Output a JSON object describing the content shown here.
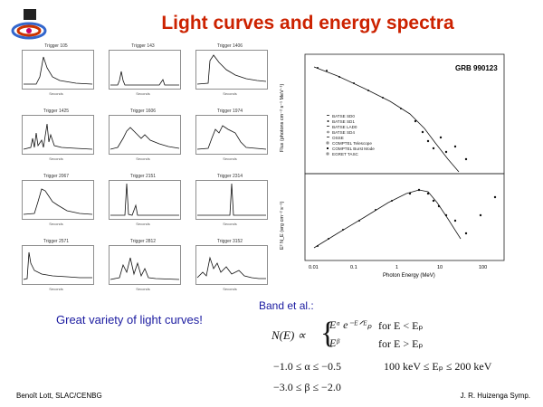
{
  "title": "Light curves and energy spectra",
  "light_curves": {
    "seconds_label": "Seconds",
    "panels": [
      {
        "trigger": "Trigger 105"
      },
      {
        "trigger": "Trigger 143"
      },
      {
        "trigger": "Trigger 1406"
      },
      {
        "trigger": "Trigger 1425"
      },
      {
        "trigger": "Trigger 1606"
      },
      {
        "trigger": "Trigger 1974"
      },
      {
        "trigger": "Trigger 2067"
      },
      {
        "trigger": "Trigger 2151"
      },
      {
        "trigger": "Trigger 2314"
      },
      {
        "trigger": "Trigger 2571"
      },
      {
        "trigger": "Trigger 2812"
      },
      {
        "trigger": "Trigger 3152"
      }
    ]
  },
  "spectrum": {
    "grb_label": "GRB 990123",
    "ylabel_top": "Flux (photons cm⁻² s⁻¹ MeV⁻¹)",
    "ylabel_bottom": "E² N_E (erg cm⁻² s⁻¹)",
    "xlabel": "Photon Energy (MeV)",
    "xticks": [
      "0.01",
      "0.1",
      "1",
      "10",
      "100"
    ],
    "legend": [
      "BATSE SD0",
      "BATSE SD1",
      "BATSE LAD0",
      "BATSE SD4",
      "OSSE",
      "COMPTEL Telescope",
      "COMPTEL Burst Mode",
      "EGRET TASC"
    ]
  },
  "caption": "Great variety of light curves!",
  "band": {
    "label": "Band et al.:",
    "lhs": "N(E) ∝",
    "case1_expr": "Eᵅ e⁻ᴱᐟᴱₚ",
    "case1_cond": "for E < Eₚ",
    "case2_expr": "Eᵝ",
    "case2_cond": "for E > Eₚ",
    "range_alpha": "−1.0 ≤ α ≤ −0.5",
    "range_ep": "100 keV ≤ Eₚ ≤ 200 keV",
    "range_beta": "−3.0 ≤ β ≤ −2.0"
  },
  "footer": {
    "left": "Benoît Lott, SLAC/CENBG",
    "right": "J. R. Huizenga Symp."
  }
}
